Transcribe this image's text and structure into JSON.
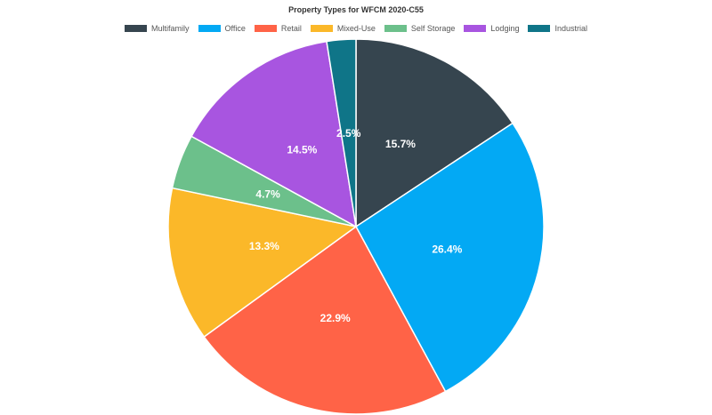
{
  "chart_data": {
    "type": "pie",
    "title": "Property Types for WFCM 2020-C55",
    "categories": [
      "Multifamily",
      "Office",
      "Retail",
      "Mixed-Use",
      "Self Storage",
      "Lodging",
      "Industrial"
    ],
    "values": [
      15.7,
      26.4,
      22.9,
      13.3,
      4.7,
      14.5,
      2.5
    ],
    "labels": [
      "15.7%",
      "26.4%",
      "22.9%",
      "13.3%",
      "4.7%",
      "14.5%",
      "2.5%"
    ],
    "colors": [
      "#36454f",
      "#03a9f4",
      "#ff6347",
      "#fbb829",
      "#6cc08b",
      "#a855e0",
      "#0f7588"
    ],
    "legend_position": "top",
    "start_angle": "top, clockwise"
  }
}
